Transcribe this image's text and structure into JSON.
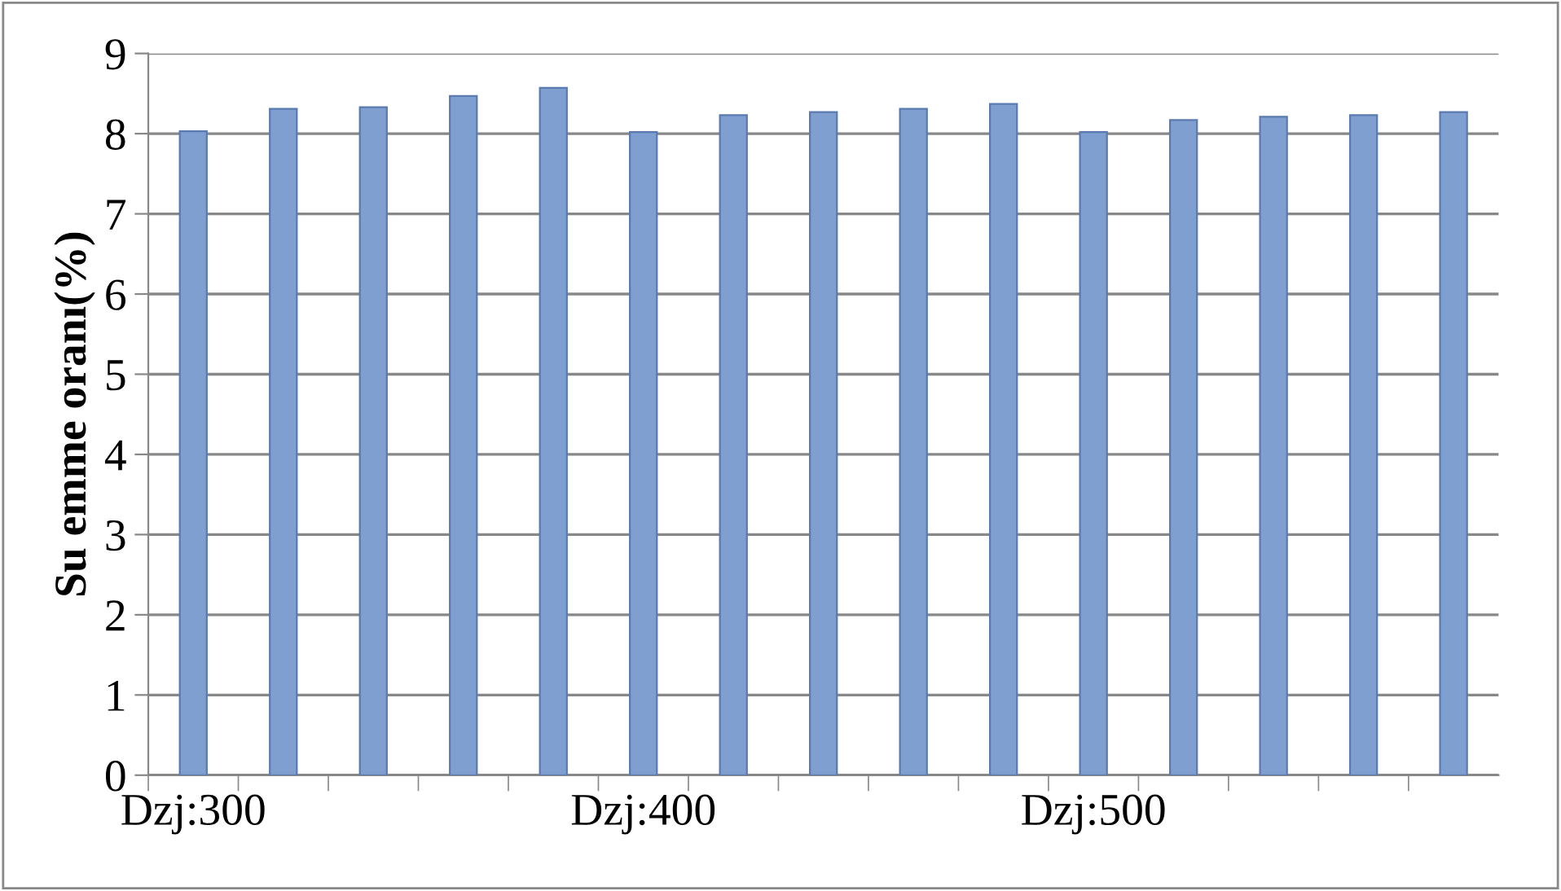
{
  "chart_data": {
    "type": "bar",
    "ylabel": "Su emme oranı(%)",
    "categories": [
      "Dzj:300",
      null,
      null,
      null,
      null,
      "Dzj:400",
      null,
      null,
      null,
      null,
      "Dzj:500",
      null,
      null,
      null,
      null
    ],
    "values": [
      8.03,
      8.31,
      8.33,
      8.47,
      8.57,
      8.02,
      8.23,
      8.27,
      8.31,
      8.37,
      8.02,
      8.17,
      8.21,
      8.23,
      8.27
    ],
    "color": "#7f9fd0",
    "ylim": [
      0,
      9
    ],
    "yticks": [
      0,
      1,
      2,
      3,
      4,
      5,
      6,
      7,
      8,
      9
    ],
    "grid": "y",
    "legend": false
  }
}
